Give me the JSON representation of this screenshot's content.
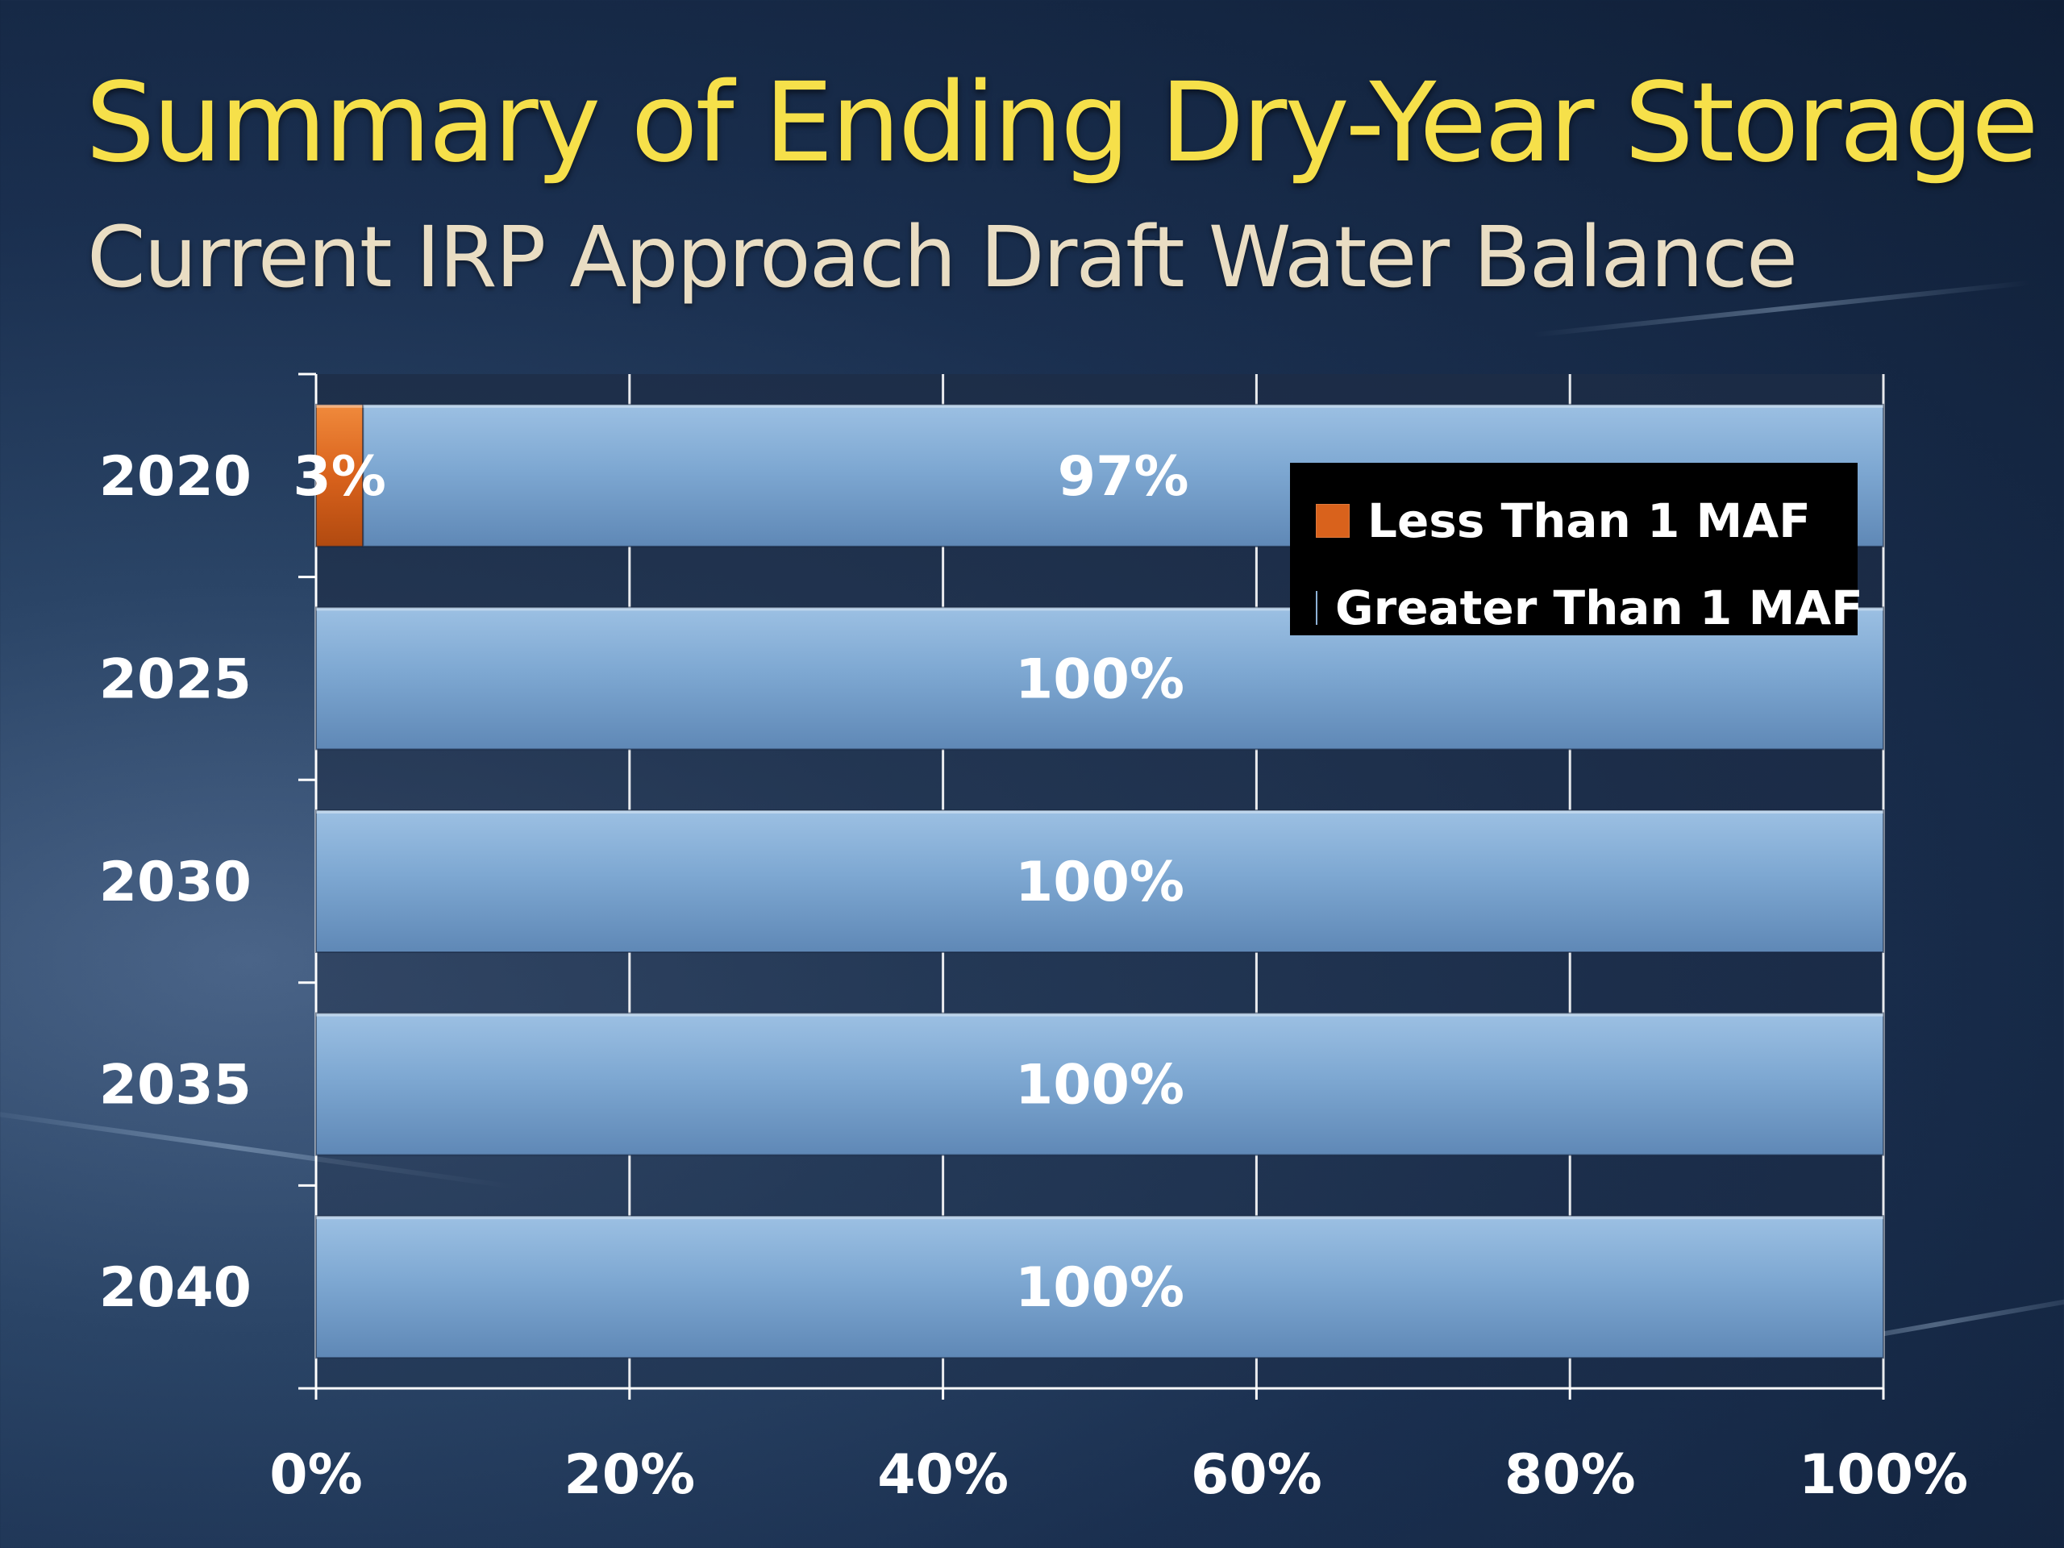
{
  "slide": {
    "title": "Summary of Ending Dry-Year Storage",
    "subtitle": "Current IRP Approach Draft  Water Balance"
  },
  "chart_data": {
    "type": "bar",
    "orientation": "horizontal",
    "stacked": true,
    "categories": [
      "2020",
      "2025",
      "2030",
      "2035",
      "2040"
    ],
    "series": [
      {
        "name": "Less Than 1 MAF",
        "values": [
          3,
          0,
          0,
          0,
          0
        ],
        "color": "#d9621c"
      },
      {
        "name": "Greater Than 1 MAF",
        "values": [
          97,
          100,
          100,
          100,
          100
        ],
        "color": "#7aa4cf"
      }
    ],
    "data_labels": [
      [
        "3%",
        "",
        "",
        "",
        ""
      ],
      [
        "97%",
        "100%",
        "100%",
        "100%",
        "100%"
      ]
    ],
    "x_ticks": [
      "0%",
      "20%",
      "40%",
      "60%",
      "80%",
      "100%"
    ],
    "xlim": [
      0,
      100
    ],
    "grid": "vertical",
    "legend_position": "top-right"
  }
}
